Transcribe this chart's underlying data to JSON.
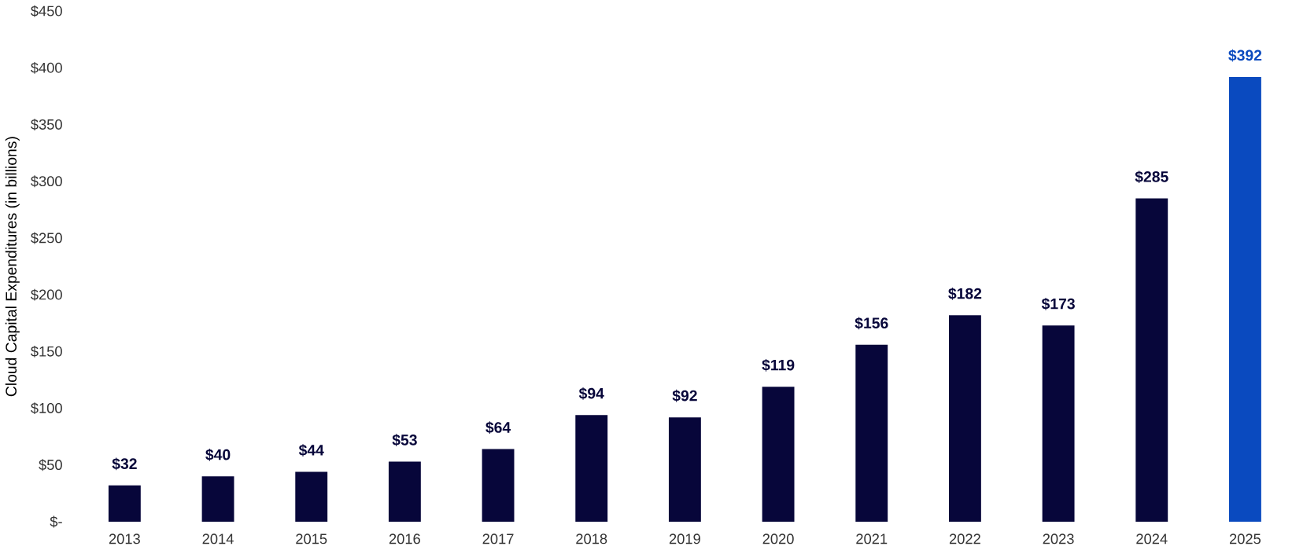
{
  "chart_data": {
    "type": "bar",
    "ylabel": "Cloud Capital Expenditures (in billions)",
    "categories": [
      "2013",
      "2014",
      "2015",
      "2016",
      "2017",
      "2018",
      "2019",
      "2020",
      "2021",
      "2022",
      "2023",
      "2024",
      "2025"
    ],
    "values": [
      32,
      40,
      44,
      53,
      64,
      94,
      92,
      119,
      156,
      182,
      173,
      285,
      392
    ],
    "value_labels": [
      "$32",
      "$40",
      "$44",
      "$53",
      "$64",
      "$94",
      "$92",
      "$119",
      "$156",
      "$182",
      "$173",
      "$285",
      "$392"
    ],
    "colors": [
      "#07063a",
      "#07063a",
      "#07063a",
      "#07063a",
      "#07063a",
      "#07063a",
      "#07063a",
      "#07063a",
      "#07063a",
      "#07063a",
      "#07063a",
      "#07063a",
      "#0a4abf"
    ],
    "ylim": [
      0,
      450
    ],
    "yticks": [
      {
        "value": 0,
        "label": "$-"
      },
      {
        "value": 50,
        "label": "$50"
      },
      {
        "value": 100,
        "label": "$100"
      },
      {
        "value": 150,
        "label": "$150"
      },
      {
        "value": 200,
        "label": "$200"
      },
      {
        "value": 250,
        "label": "$250"
      },
      {
        "value": 300,
        "label": "$300"
      },
      {
        "value": 350,
        "label": "$350"
      },
      {
        "value": 400,
        "label": "$400"
      },
      {
        "value": 450,
        "label": "$450"
      }
    ],
    "grid": false
  }
}
